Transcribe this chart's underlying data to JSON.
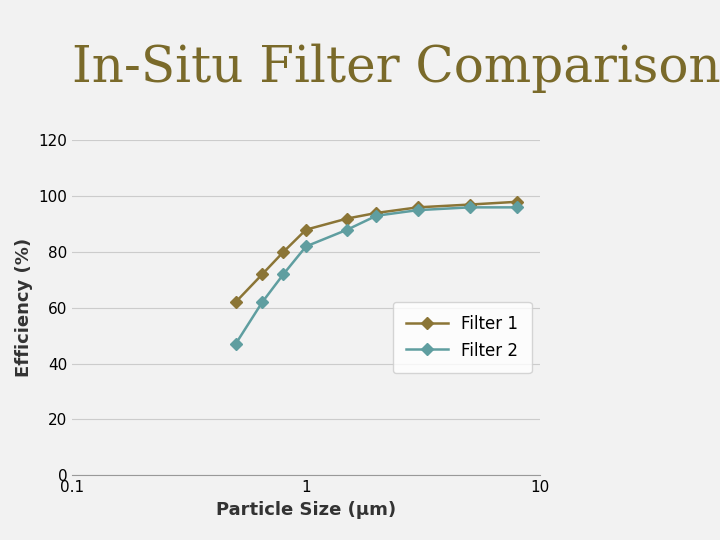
{
  "title": "In-Situ Filter Comparison",
  "xlabel": "Particle Size (μm)",
  "ylabel": "Efficiency (%)",
  "title_color": "#7a6a2a",
  "chart_bg": "#f2f2f2",
  "fig_bg": "#f2f2f2",
  "sidebar_color": "#6b5e3e",
  "filter1": {
    "x": [
      0.5,
      0.65,
      0.8,
      1.0,
      1.5,
      2.0,
      3.0,
      5.0,
      8.0
    ],
    "y": [
      62,
      72,
      80,
      88,
      92,
      94,
      96,
      97,
      98
    ],
    "color": "#8B7536",
    "label": "Filter 1",
    "marker": "D"
  },
  "filter2": {
    "x": [
      0.5,
      0.65,
      0.8,
      1.0,
      1.5,
      2.0,
      3.0,
      5.0,
      8.0
    ],
    "y": [
      47,
      62,
      72,
      82,
      88,
      93,
      95,
      96,
      96
    ],
    "color": "#5f9ea0",
    "label": "Filter 2",
    "marker": "D"
  },
  "xlim": [
    0.1,
    10
  ],
  "ylim": [
    0,
    120
  ],
  "yticks": [
    0,
    20,
    40,
    60,
    80,
    100,
    120
  ],
  "grid_color": "#cccccc",
  "title_fontsize": 36,
  "axis_label_fontsize": 13,
  "tick_fontsize": 11,
  "legend_fontsize": 12
}
